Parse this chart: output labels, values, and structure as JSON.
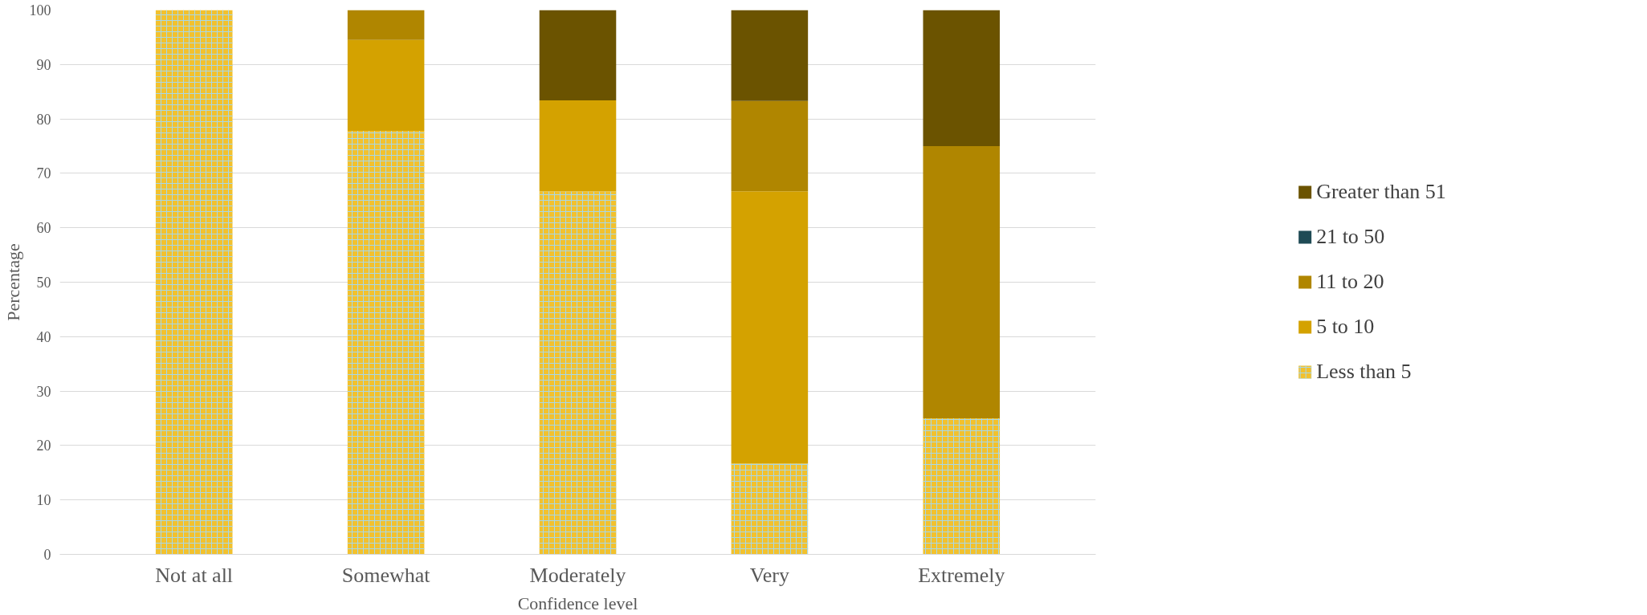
{
  "chart_data": {
    "type": "bar",
    "stacked": true,
    "xlabel": "Confidence level",
    "ylabel": "Percentage",
    "categories": [
      "Not at all",
      "Somewhat",
      "Moderately",
      "Very",
      "Extremely"
    ],
    "series": [
      {
        "name": "Less than 5",
        "color": "#f2c12e",
        "values": [
          100,
          77.8,
          66.7,
          16.7,
          25
        ]
      },
      {
        "name": "5 to 10",
        "color": "#d4a200",
        "values": [
          0,
          16.7,
          16.7,
          50,
          0
        ]
      },
      {
        "name": "11 to 20",
        "color": "#b08600",
        "values": [
          0,
          5.5,
          0,
          16.6,
          50
        ]
      },
      {
        "name": "21 to 50",
        "color": "#1f4b55",
        "values": [
          0,
          0,
          0,
          0,
          0
        ]
      },
      {
        "name": "Greater than 51",
        "color": "#6b5300",
        "values": [
          0,
          0,
          16.6,
          16.7,
          25
        ]
      }
    ],
    "ylim": [
      0,
      100
    ],
    "yticks": [
      0,
      10,
      20,
      30,
      40,
      50,
      60,
      70,
      80,
      90,
      100
    ],
    "grid": "y",
    "legend": "right"
  }
}
